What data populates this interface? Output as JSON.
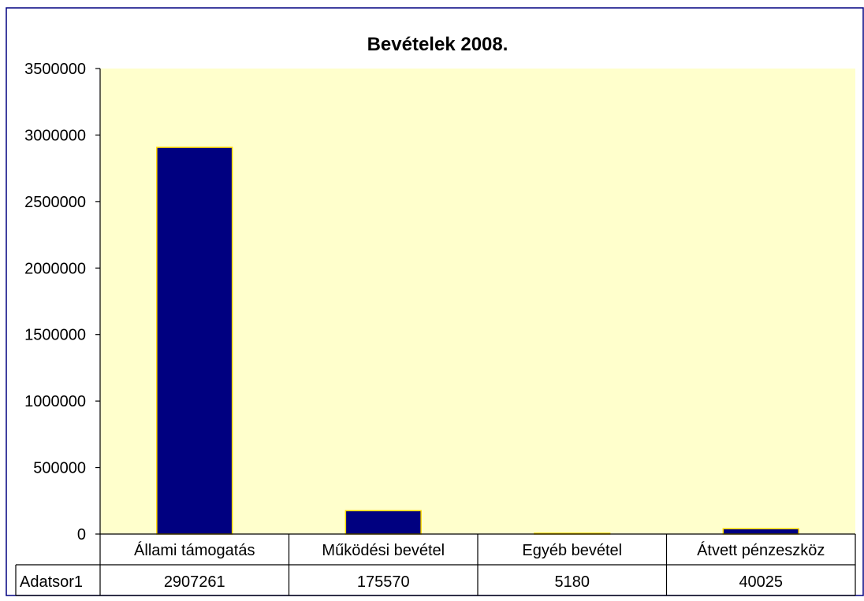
{
  "chart_data": {
    "type": "bar",
    "title": "Bevételek 2008.",
    "xlabel": "",
    "ylabel": "",
    "categories": [
      "Állami támogatás",
      "Működési bevétel",
      "Egyéb bevétel",
      "Átvett pénzeszköz"
    ],
    "series": [
      {
        "name": "Adatsor1",
        "values": [
          2907261,
          175570,
          5180,
          40025
        ]
      }
    ],
    "ylim": [
      0,
      3500000
    ],
    "yticks": [
      0,
      500000,
      1000000,
      1500000,
      2000000,
      2500000,
      3000000,
      3500000
    ],
    "data_table": true,
    "grid": false,
    "legend": "none",
    "colors": {
      "bar_fill": "#000080",
      "bar_stroke": "#ffd700",
      "plot_background": "#ffffcc",
      "frame": "#000080"
    }
  }
}
